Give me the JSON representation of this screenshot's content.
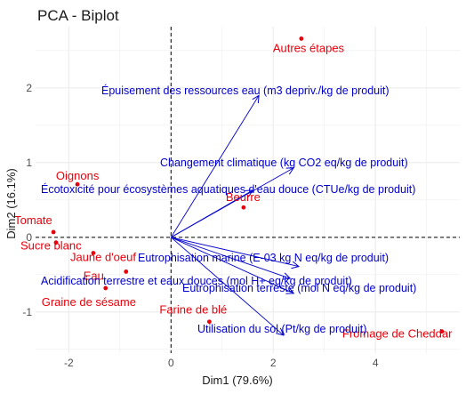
{
  "chart_data": {
    "type": "scatter",
    "title": "PCA - Biplot",
    "xlabel": "Dim1 (79.6%)",
    "ylabel": "Dim2 (16.1%)",
    "xlim": [
      -2.65,
      5.65
    ],
    "ylim": [
      -1.55,
      2.82
    ],
    "x_ticks": [
      -2,
      0,
      2,
      4
    ],
    "y_ticks": [
      -1,
      0,
      1,
      2
    ],
    "grid": true,
    "colors": {
      "individuals": "#e8000b",
      "variables": "#0000cc",
      "zero_lines": "#000000",
      "grid": "#ebebeb"
    },
    "individuals": [
      {
        "label": "Autres étapes",
        "x": 2.55,
        "y": 2.66
      },
      {
        "label": "Oignons",
        "x": -1.83,
        "y": 0.71
      },
      {
        "label": "Beurre",
        "x": 1.42,
        "y": 0.4
      },
      {
        "label": "Tomate",
        "x": -2.3,
        "y": 0.07
      },
      {
        "label": "Sucre blanc",
        "x": -2.25,
        "y": -0.07
      },
      {
        "label": "Jaune d'oeuf",
        "x": -1.52,
        "y": -0.21
      },
      {
        "label": "Eau",
        "x": -0.88,
        "y": -0.46
      },
      {
        "label": "Graine de sésame",
        "x": -1.28,
        "y": -0.68
      },
      {
        "label": "Farine de blé",
        "x": 0.75,
        "y": -1.13
      },
      {
        "label": "Fromage de Cheddar",
        "x": 5.3,
        "y": -1.26
      }
    ],
    "variables": [
      {
        "label": "Épuisement des ressources eau (m3 depriv./kg de produit)",
        "x": 1.72,
        "y": 1.9
      },
      {
        "label": "Changement climatique (kg CO2 eq/kg de produit)",
        "x": 2.4,
        "y": 0.93
      },
      {
        "label": "Écotoxicité pour écosystèmes aquatiques d'eau douce (CTUe/kg de produit)",
        "x": 1.6,
        "y": 0.63
      },
      {
        "label": "Eutrophisation marine (E-03 kg N eq/kg de produit)",
        "x": 2.5,
        "y": -0.39
      },
      {
        "label": "Acidification terrestre et eaux douces (mol H+ eq/kg de produit)",
        "x": 2.33,
        "y": -0.55
      },
      {
        "label": "Eutrophisation terreste (mol N eq/kg de produit)",
        "x": 2.4,
        "y": -0.75
      },
      {
        "label": "Utilisation du sol (Pt/kg de produit)",
        "x": 2.2,
        "y": -1.31
      }
    ]
  }
}
